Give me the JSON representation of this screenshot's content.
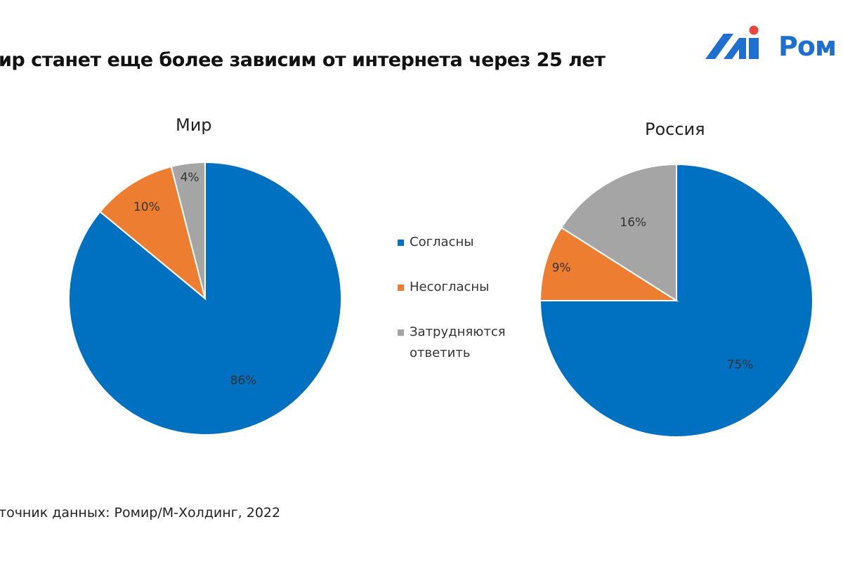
{
  "slide": {
    "title": "ир станет еще более зависим от интернета через 25 лет",
    "source": "точник данных: Ромир/М-Холдинг, 2022"
  },
  "logo": {
    "text": "Ром",
    "colors": [
      "#1e6fd0",
      "#e8473b"
    ]
  },
  "legend": {
    "items": [
      {
        "label": "Согласны",
        "color": "#0070c0"
      },
      {
        "label": "Несогласны",
        "color": "#ed7d31"
      },
      {
        "label": "Затрудняются\nответить",
        "color": "#a5a5a5"
      }
    ]
  },
  "chart_data": [
    {
      "type": "pie",
      "title": "Мир",
      "slices": [
        {
          "label": "Согласны",
          "value": 86,
          "display": "86%",
          "color": "#0070c0"
        },
        {
          "label": "Несогласны",
          "value": 10,
          "display": "10%",
          "color": "#ed7d31"
        },
        {
          "label": "Затрудняются ответить",
          "value": 4,
          "display": "4%",
          "color": "#a5a5a5"
        }
      ]
    },
    {
      "type": "pie",
      "title": "Россия",
      "slices": [
        {
          "label": "Согласны",
          "value": 75,
          "display": "75%",
          "color": "#0070c0"
        },
        {
          "label": "Несогласны",
          "value": 9,
          "display": "9%",
          "color": "#ed7d31"
        },
        {
          "label": "Затрудняются ответить",
          "value": 16,
          "display": "16%",
          "color": "#a5a5a5"
        }
      ]
    }
  ]
}
